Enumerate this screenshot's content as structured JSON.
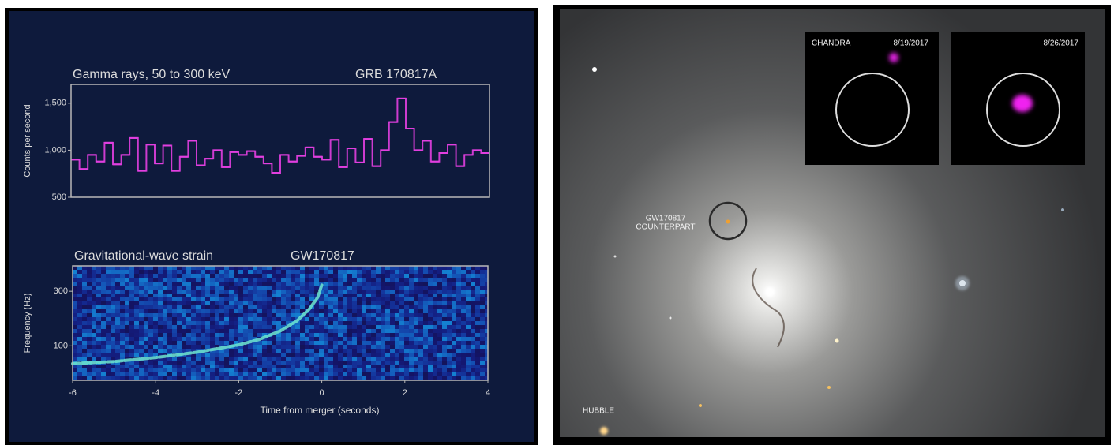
{
  "chart_data": [
    {
      "type": "histogram",
      "title": "Gamma rays, 50 to 300 keV",
      "annotation": "GRB 170817A",
      "ylabel": "Counts per second",
      "color": "#e23fe0",
      "bins": [
        -6,
        -5.8,
        -5.6,
        -5.4,
        -5.2,
        -5,
        -4.8,
        -4.6,
        -4.4,
        -4.2,
        -4,
        -3.8,
        -3.6,
        -3.4,
        -3.2,
        -3,
        -2.8,
        -2.6,
        -2.4,
        -2.2,
        -2,
        -1.8,
        -1.6,
        -1.4,
        -1.2,
        -1,
        -0.8,
        -0.6,
        -0.4,
        -0.2,
        0,
        0.2,
        0.4,
        0.6,
        0.8,
        1,
        1.2,
        1.4,
        1.6,
        1.8,
        2,
        2.2,
        2.4,
        2.6,
        2.8,
        3,
        3.2,
        3.4,
        3.6,
        3.8,
        4
      ],
      "values": [
        900,
        800,
        950,
        880,
        1080,
        850,
        950,
        1130,
        780,
        1060,
        860,
        1050,
        780,
        930,
        1100,
        840,
        910,
        1000,
        820,
        980,
        950,
        990,
        930,
        860,
        760,
        950,
        880,
        940,
        1030,
        930,
        900,
        1110,
        820,
        1020,
        870,
        1120,
        830,
        1000,
        1300,
        1550,
        1230,
        1000,
        1100,
        880,
        970,
        1060,
        830,
        950,
        1000,
        970
      ],
      "xlim": [
        -6,
        4
      ],
      "ylim": [
        500,
        1700
      ],
      "yticks": [
        500,
        {
          "value": 1000,
          "label": "1,000"
        },
        {
          "value": 1500,
          "label": "1,500"
        }
      ]
    },
    {
      "type": "line",
      "title": "Gravitational-wave strain",
      "annotation": "GW170817",
      "xlabel": "Time from merger (seconds)",
      "ylabel": "Frequency (Hz)",
      "color": "#6fe6cf",
      "x": [
        -6,
        -5,
        -4,
        -3,
        -2,
        -1.5,
        -1,
        -0.6,
        -0.3,
        -0.1,
        0
      ],
      "values": [
        70,
        73,
        79,
        88,
        102,
        114,
        135,
        165,
        210,
        265,
        340
      ],
      "xlim": [
        -6,
        4
      ],
      "xticks": [
        -6,
        -4,
        -2,
        0,
        2,
        4
      ],
      "ylim": [
        50,
        500
      ],
      "log_y": true,
      "yticks": [
        100,
        300
      ]
    }
  ],
  "image": {
    "insets": [
      "CHANDRA",
      "8/19/2017",
      "8/26/2017"
    ],
    "counterpart": [
      "GW170817",
      "COUNTERPART"
    ],
    "credit": "HUBBLE"
  }
}
